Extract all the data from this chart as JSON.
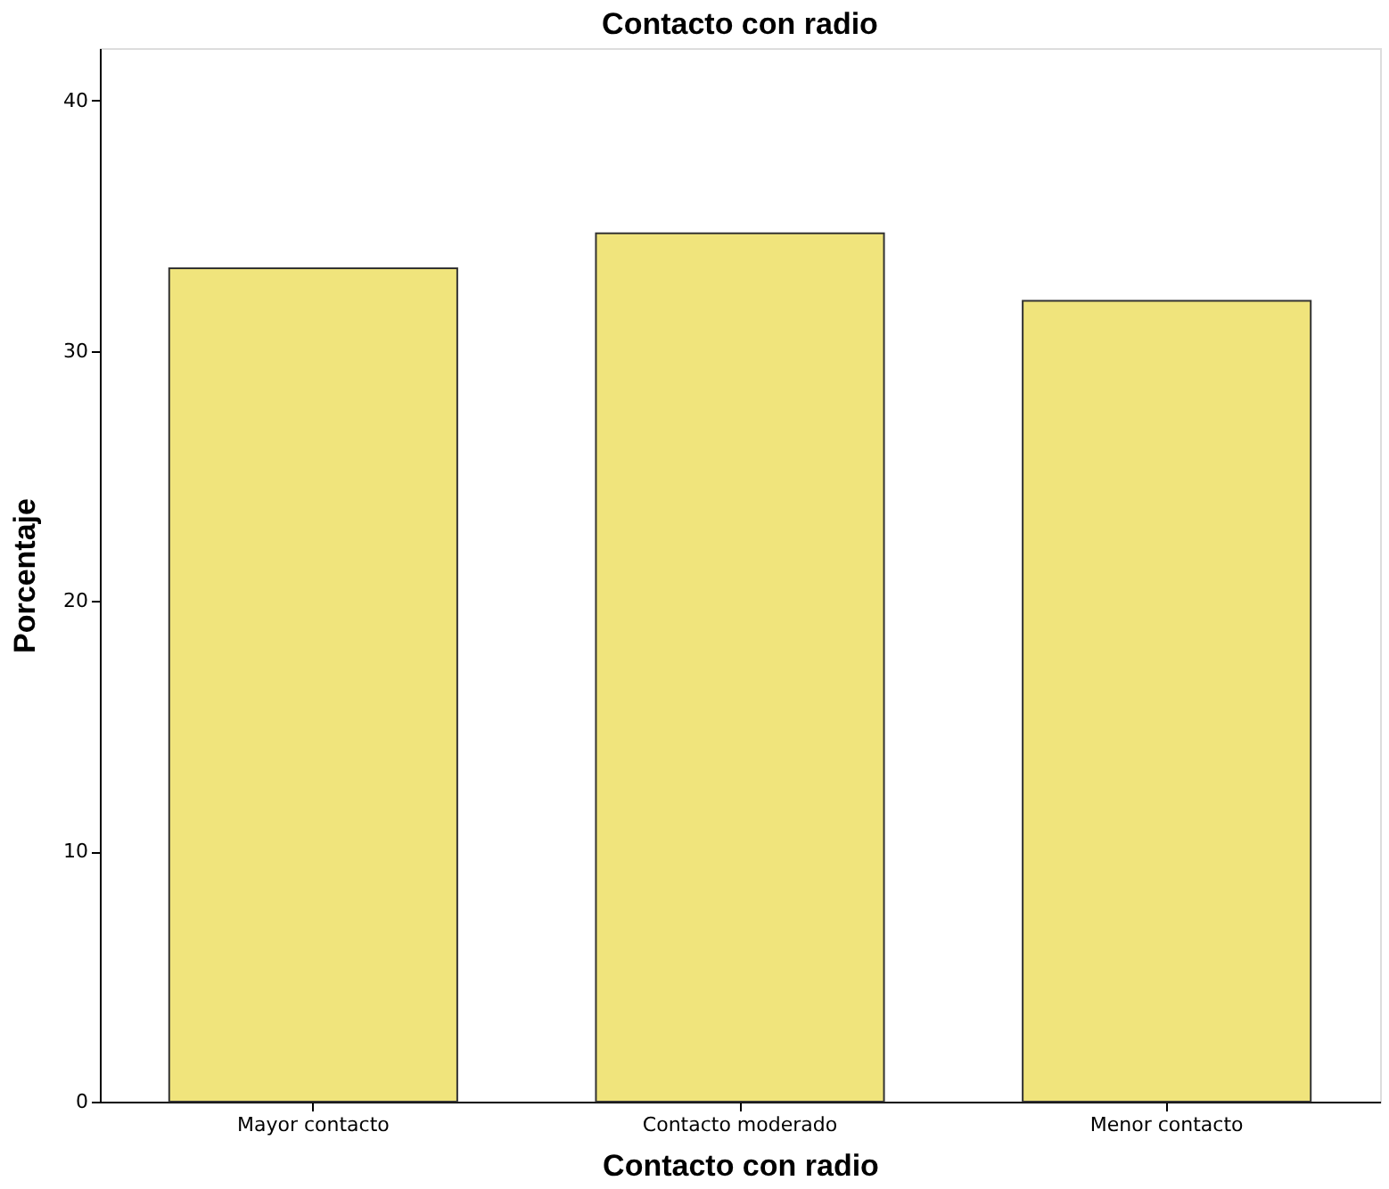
{
  "chart_data": {
    "type": "bar",
    "title": "Contacto con radio",
    "xlabel": "Contacto con radio",
    "ylabel": "Porcentaje",
    "categories": [
      "Mayor contacto",
      "Contacto moderado",
      "Menor contacto"
    ],
    "values": [
      33.3,
      34.7,
      32.0
    ],
    "color": "#f0e47c",
    "ylim": [
      0,
      42.1
    ],
    "yticks": [
      0,
      10,
      20,
      30,
      40
    ],
    "grid": false
  }
}
